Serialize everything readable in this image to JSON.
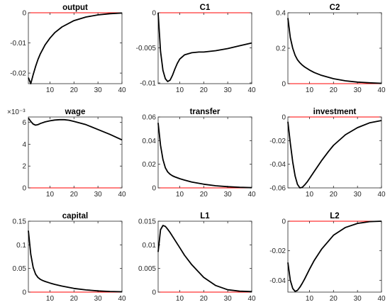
{
  "figure": {
    "background": "#ffffff",
    "series_color": "#000000",
    "steady_state_line_color": "#ff0000"
  },
  "chart_data": [
    {
      "type": "line",
      "title": "output",
      "xlim": [
        1,
        40
      ],
      "ylim": [
        -0.0235,
        0
      ],
      "xticks": [
        10,
        20,
        30,
        40
      ],
      "xtick_labels": [
        "10",
        "20",
        "30",
        "40"
      ],
      "yticks": [
        -0.02,
        -0.01,
        0
      ],
      "ytick_labels": [
        "-0.02",
        "-0.01",
        "0"
      ],
      "x": [
        1,
        2,
        3,
        4,
        5,
        6,
        8,
        10,
        12,
        15,
        20,
        25,
        30,
        35,
        40
      ],
      "series": [
        {
          "values": [
            -0.0215,
            -0.0235,
            -0.0205,
            -0.0178,
            -0.0155,
            -0.0136,
            -0.0106,
            -0.0084,
            -0.0066,
            -0.0047,
            -0.0026,
            -0.0014,
            -0.0007,
            -0.0003,
            -0.0001
          ]
        }
      ]
    },
    {
      "type": "line",
      "title": "C1",
      "xlim": [
        1,
        40
      ],
      "ylim": [
        -0.0101,
        0
      ],
      "xticks": [
        10,
        20,
        30,
        40
      ],
      "xtick_labels": [
        "10",
        "20",
        "30",
        "40"
      ],
      "yticks": [
        -0.01,
        -0.005,
        0
      ],
      "ytick_labels": [
        "-0.01",
        "-0.005",
        "0"
      ],
      "x": [
        1,
        2,
        3,
        4,
        5,
        6,
        7,
        8,
        9,
        10,
        12,
        15,
        18,
        20,
        25,
        30,
        35,
        40
      ],
      "series": [
        {
          "values": [
            0,
            -0.0055,
            -0.0082,
            -0.0094,
            -0.0098,
            -0.0096,
            -0.0089,
            -0.008,
            -0.0072,
            -0.0066,
            -0.006,
            -0.0057,
            -0.0056,
            -0.0056,
            -0.0054,
            -0.0051,
            -0.0047,
            -0.0043
          ]
        }
      ]
    },
    {
      "type": "line",
      "title": "C2",
      "xlim": [
        1,
        40
      ],
      "ylim": [
        0,
        0.4
      ],
      "xticks": [
        10,
        20,
        30,
        40
      ],
      "xtick_labels": [
        "10",
        "20",
        "30",
        "40"
      ],
      "yticks": [
        0,
        0.2,
        0.4
      ],
      "ytick_labels": [
        "0",
        "0.2",
        "0.4"
      ],
      "x": [
        1,
        2,
        3,
        4,
        5,
        6,
        7,
        8,
        10,
        12,
        15,
        20,
        25,
        30,
        35,
        40
      ],
      "series": [
        {
          "values": [
            0.37,
            0.26,
            0.2,
            0.16,
            0.135,
            0.118,
            0.105,
            0.094,
            0.077,
            0.063,
            0.047,
            0.028,
            0.016,
            0.009,
            0.005,
            0.002
          ]
        }
      ]
    },
    {
      "type": "line",
      "title": "wage",
      "exponent_label": "×10⁻³",
      "xlim": [
        1,
        40
      ],
      "ylim": [
        0,
        6.5
      ],
      "xticks": [
        10,
        20,
        30,
        40
      ],
      "xtick_labels": [
        "10",
        "20",
        "30",
        "40"
      ],
      "yticks": [
        0,
        2,
        4,
        6
      ],
      "ytick_labels": [
        "0",
        "2",
        "4",
        "6"
      ],
      "x": [
        1,
        2,
        3,
        4,
        5,
        6,
        8,
        10,
        12,
        14,
        16,
        18,
        20,
        25,
        30,
        35,
        40
      ],
      "series": [
        {
          "values": [
            6.4,
            6.1,
            5.85,
            5.75,
            5.8,
            5.9,
            6.05,
            6.15,
            6.22,
            6.25,
            6.25,
            6.2,
            6.1,
            5.8,
            5.35,
            4.9,
            4.4
          ]
        }
      ]
    },
    {
      "type": "line",
      "title": "transfer",
      "xlim": [
        1,
        40
      ],
      "ylim": [
        0,
        0.06
      ],
      "xticks": [
        10,
        20,
        30,
        40
      ],
      "xtick_labels": [
        "10",
        "20",
        "30",
        "40"
      ],
      "yticks": [
        0,
        0.02,
        0.04,
        0.06
      ],
      "ytick_labels": [
        "0",
        "0.02",
        "0.04",
        "0.06"
      ],
      "x": [
        1,
        2,
        3,
        4,
        5,
        6,
        7,
        8,
        10,
        12,
        15,
        20,
        25,
        30,
        35,
        40
      ],
      "series": [
        {
          "values": [
            0.055,
            0.036,
            0.024,
            0.017,
            0.0135,
            0.0115,
            0.0102,
            0.0093,
            0.0078,
            0.0066,
            0.005,
            0.0031,
            0.0018,
            0.001,
            0.0005,
            0.0002
          ]
        }
      ]
    },
    {
      "type": "line",
      "title": "investment",
      "xlim": [
        1,
        40
      ],
      "ylim": [
        -0.06,
        0
      ],
      "xticks": [
        10,
        20,
        30,
        40
      ],
      "xtick_labels": [
        "10",
        "20",
        "30",
        "40"
      ],
      "yticks": [
        -0.06,
        -0.04,
        -0.02,
        0
      ],
      "ytick_labels": [
        "-0.06",
        "-0.04",
        "-0.02",
        "0"
      ],
      "x": [
        1,
        2,
        3,
        4,
        5,
        6,
        7,
        8,
        9,
        10,
        12,
        15,
        18,
        20,
        25,
        30,
        35,
        40
      ],
      "series": [
        {
          "values": [
            -0.004,
            -0.022,
            -0.038,
            -0.05,
            -0.057,
            -0.06,
            -0.0595,
            -0.0575,
            -0.055,
            -0.052,
            -0.046,
            -0.037,
            -0.029,
            -0.024,
            -0.015,
            -0.009,
            -0.005,
            -0.003
          ]
        }
      ]
    },
    {
      "type": "line",
      "title": "capital",
      "xlim": [
        1,
        40
      ],
      "ylim": [
        0,
        0.15
      ],
      "xticks": [
        10,
        20,
        30,
        40
      ],
      "xtick_labels": [
        "10",
        "20",
        "30",
        "40"
      ],
      "yticks": [
        0,
        0.05,
        0.1,
        0.15
      ],
      "ytick_labels": [
        "0",
        "0.05",
        "0.1",
        "0.15"
      ],
      "x": [
        1,
        2,
        3,
        4,
        5,
        6,
        7,
        8,
        10,
        12,
        15,
        20,
        25,
        30,
        35,
        40
      ],
      "series": [
        {
          "values": [
            0.13,
            0.08,
            0.052,
            0.038,
            0.031,
            0.027,
            0.0245,
            0.0225,
            0.0192,
            0.0163,
            0.0127,
            0.0078,
            0.0046,
            0.0026,
            0.0014,
            0.0008
          ]
        }
      ]
    },
    {
      "type": "line",
      "title": "L1",
      "xlim": [
        1,
        40
      ],
      "ylim": [
        0,
        0.015
      ],
      "xticks": [
        10,
        20,
        30,
        40
      ],
      "xtick_labels": [
        "10",
        "20",
        "30",
        "40"
      ],
      "yticks": [
        0,
        0.005,
        0.01,
        0.015
      ],
      "ytick_labels": [
        "0",
        "0.005",
        "0.01",
        "0.015"
      ],
      "x": [
        1,
        2,
        3,
        4,
        5,
        6,
        8,
        10,
        12,
        15,
        20,
        25,
        30,
        35,
        40
      ],
      "series": [
        {
          "values": [
            0.0085,
            0.0132,
            0.0141,
            0.0139,
            0.0133,
            0.0126,
            0.011,
            0.0094,
            0.0078,
            0.0058,
            0.0031,
            0.0014,
            0.0005,
            0.0002,
            0.0001
          ]
        }
      ]
    },
    {
      "type": "line",
      "title": "L2",
      "xlim": [
        1,
        40
      ],
      "ylim": [
        -0.048,
        0
      ],
      "xticks": [
        10,
        20,
        30,
        40
      ],
      "xtick_labels": [
        "10",
        "20",
        "30",
        "40"
      ],
      "yticks": [
        -0.04,
        -0.02,
        0
      ],
      "ytick_labels": [
        "-0.04",
        "-0.02",
        "0"
      ],
      "x": [
        1,
        2,
        3,
        4,
        5,
        6,
        7,
        8,
        10,
        12,
        15,
        20,
        25,
        30,
        35,
        40
      ],
      "series": [
        {
          "values": [
            -0.028,
            -0.04,
            -0.0455,
            -0.0475,
            -0.0468,
            -0.0447,
            -0.042,
            -0.039,
            -0.0325,
            -0.0265,
            -0.019,
            -0.0095,
            -0.0042,
            -0.0015,
            -0.0003,
            0
          ]
        }
      ]
    }
  ]
}
